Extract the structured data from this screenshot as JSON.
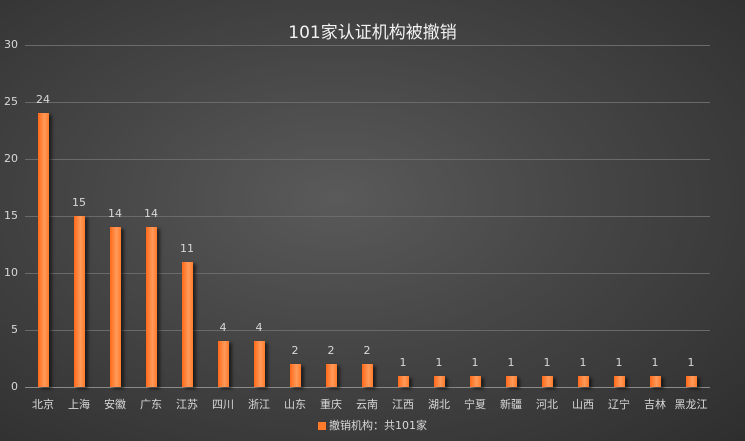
{
  "chart_data": {
    "type": "bar",
    "title": "101家认证机构被撤销",
    "categories": [
      "北京",
      "上海",
      "安徽",
      "广东",
      "江苏",
      "四川",
      "浙江",
      "山东",
      "重庆",
      "云南",
      "江西",
      "湖北",
      "宁夏",
      "新疆",
      "河北",
      "山西",
      "辽宁",
      "吉林",
      "黑龙江"
    ],
    "series": [
      {
        "name": "撤销机构：共101家",
        "values": [
          24,
          15,
          14,
          14,
          11,
          4,
          4,
          2,
          2,
          2,
          1,
          1,
          1,
          1,
          1,
          1,
          1,
          1,
          1
        ]
      }
    ],
    "xlabel": "",
    "ylabel": "",
    "ylim": [
      0,
      30
    ],
    "yticks": [
      0,
      5,
      10,
      15,
      20,
      25,
      30
    ],
    "grid": true,
    "legend_position": "bottom",
    "data_labels": true,
    "bar_color": "#ff7a2a"
  }
}
